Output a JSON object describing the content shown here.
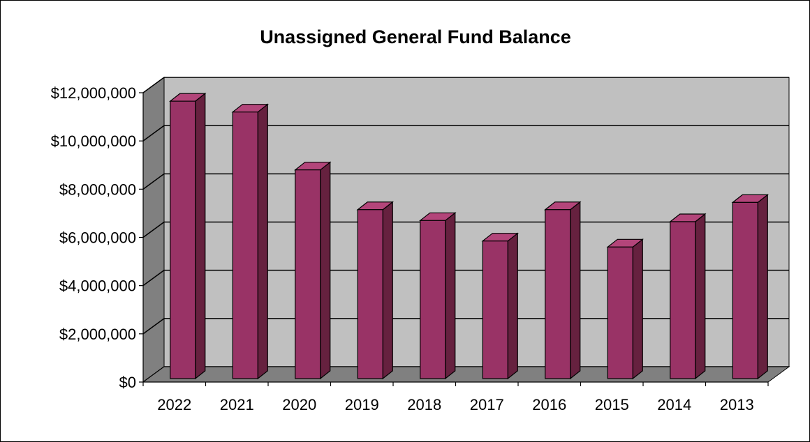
{
  "chart_data": {
    "type": "bar",
    "title": "Unassigned General Fund Balance",
    "categories": [
      "2022",
      "2021",
      "2020",
      "2019",
      "2018",
      "2017",
      "2016",
      "2015",
      "2014",
      "2013"
    ],
    "values": [
      11650000,
      11200000,
      8800000,
      7150000,
      6700000,
      5850000,
      7150000,
      5600000,
      6650000,
      7450000
    ],
    "y_ticks": [
      0,
      2000000,
      4000000,
      6000000,
      8000000,
      10000000,
      12000000
    ],
    "y_tick_labels": [
      "$0",
      "$2,000,000",
      "$4,000,000",
      "$6,000,000",
      "$8,000,000",
      "$10,000,000",
      "$12,000,000"
    ],
    "ylim": [
      0,
      12000000
    ],
    "xlabel": "",
    "ylabel": "",
    "grid": true,
    "legend": false,
    "colors": {
      "bar_front": "#993366",
      "bar_side": "#66213f",
      "bar_top": "#b3457a",
      "back_wall": "#c0c0c0",
      "side_wall": "#808080",
      "floor": "#808080",
      "gridline": "#000000"
    }
  }
}
